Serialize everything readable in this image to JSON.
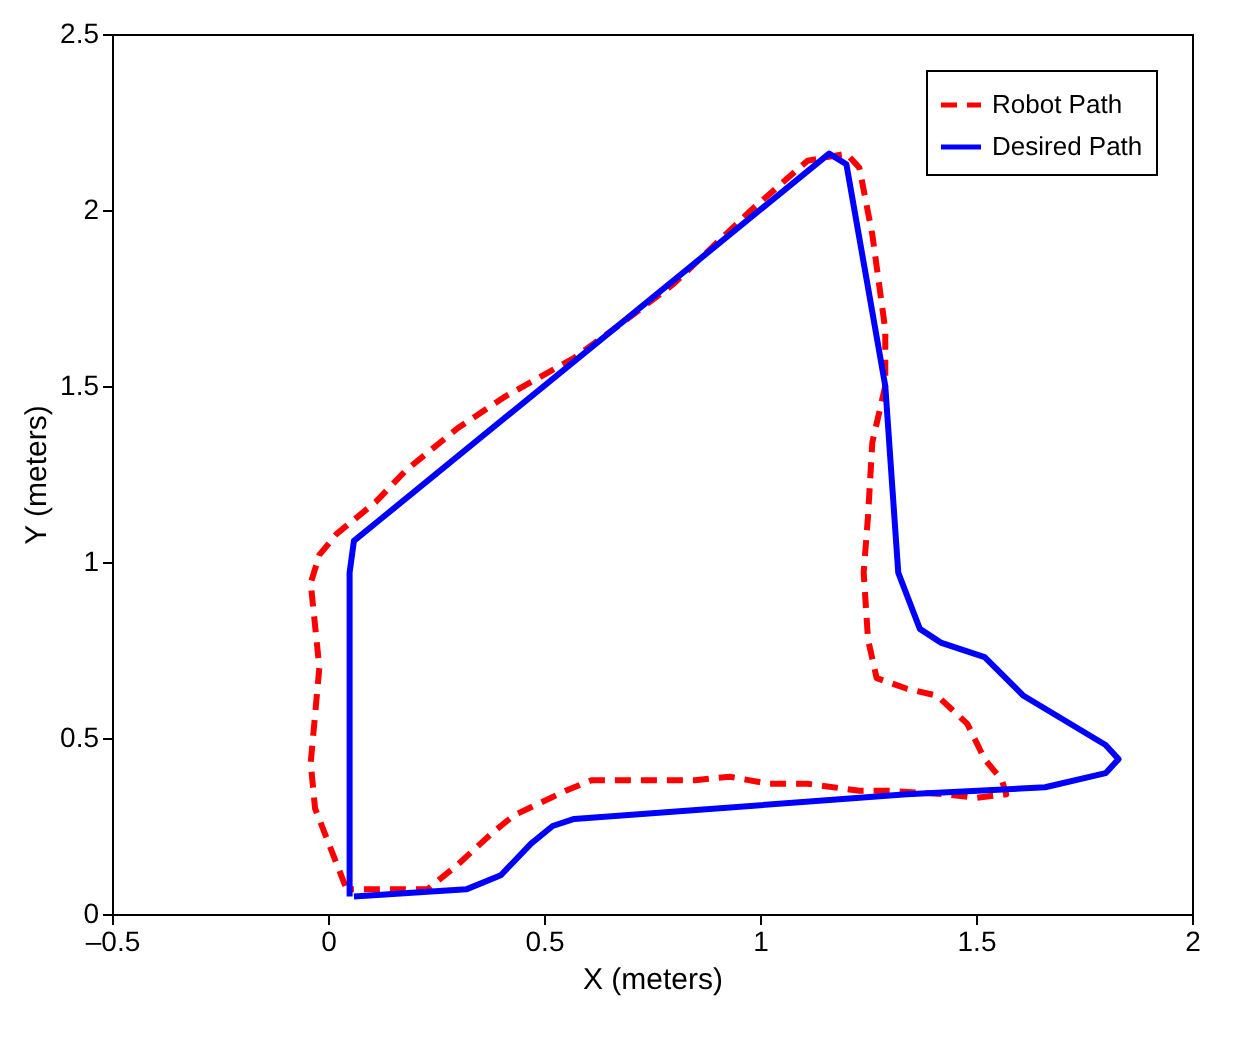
{
  "chart_data": {
    "type": "line",
    "xlabel": "X (meters)",
    "ylabel": "Y (meters)",
    "xlim": [
      -0.5,
      2
    ],
    "ylim": [
      0,
      2.5
    ],
    "xticks": [
      {
        "value": -0.5,
        "label": "–0.5"
      },
      0,
      0.5,
      1,
      1.5,
      2
    ],
    "yticks": [
      0,
      0.5,
      1,
      1.5,
      2,
      2.5
    ],
    "grid": false,
    "legend": "top right",
    "series": [
      {
        "name": "Robot Path",
        "color": "#ff0000",
        "line_style": "dashed",
        "x": [
          0.04,
          -0.03,
          -0.04,
          -0.02,
          -0.04,
          -0.02,
          0.02,
          0.11,
          0.18,
          0.3,
          0.41,
          0.57,
          0.66,
          0.8,
          0.98,
          1.11,
          1.2,
          1.23,
          1.26,
          1.29,
          1.29,
          1.26,
          1.25,
          1.24,
          1.25,
          1.27,
          1.34,
          1.41,
          1.48,
          1.52,
          1.56,
          1.57,
          1.5,
          1.43,
          1.3,
          1.23,
          1.11,
          1.02,
          0.93,
          0.85,
          0.7,
          0.61,
          0.55,
          0.43,
          0.38,
          0.3,
          0.23,
          0.16,
          0.05
        ],
        "values": [
          0.08,
          0.3,
          0.43,
          0.7,
          0.94,
          1.02,
          1.08,
          1.17,
          1.26,
          1.38,
          1.47,
          1.58,
          1.66,
          1.79,
          2.0,
          2.14,
          2.16,
          2.12,
          1.93,
          1.66,
          1.5,
          1.34,
          1.13,
          0.97,
          0.78,
          0.67,
          0.64,
          0.62,
          0.54,
          0.44,
          0.38,
          0.34,
          0.33,
          0.34,
          0.35,
          0.35,
          0.37,
          0.37,
          0.39,
          0.38,
          0.38,
          0.38,
          0.35,
          0.28,
          0.23,
          0.14,
          0.07,
          0.07,
          0.07
        ]
      },
      {
        "name": "Desired Path",
        "color": "#0000ff",
        "line_style": "solid",
        "x": [
          0.05,
          0.05,
          0.06,
          0.12,
          1.16,
          1.2,
          1.29,
          1.32,
          1.37,
          1.42,
          1.52,
          1.61,
          1.8,
          1.83,
          1.8,
          1.66,
          1.34,
          0.57,
          0.52,
          0.47,
          0.4,
          0.32,
          0.06
        ],
        "values": [
          0.05,
          0.97,
          1.06,
          1.12,
          2.16,
          2.13,
          1.5,
          0.97,
          0.81,
          0.77,
          0.73,
          0.62,
          0.48,
          0.44,
          0.4,
          0.36,
          0.34,
          0.27,
          0.25,
          0.2,
          0.11,
          0.07,
          0.05
        ]
      }
    ]
  }
}
